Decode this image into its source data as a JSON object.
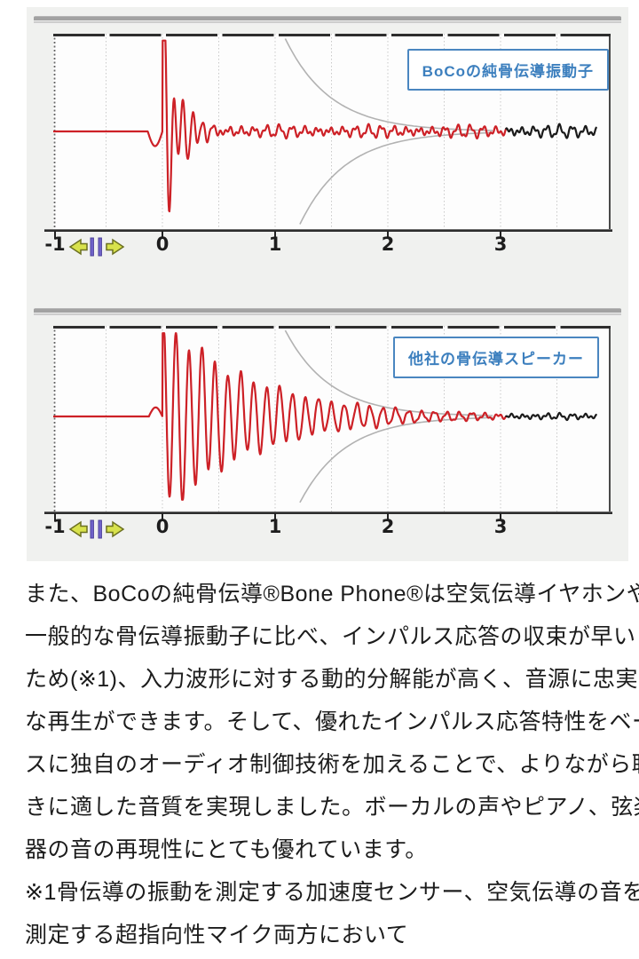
{
  "colors": {
    "section_bg": "#f0f1ef",
    "plot_bg": "#fdfdfd",
    "waveform_red": "#cd2127",
    "waveform_converged_black": "#1b1b1b",
    "envelope_gray": "#b2b2b2",
    "gridline_gray": "#c9c9c9",
    "plot_border_dark": "#2e2e2e",
    "label_text_blue": "#3c7fbe",
    "label_border_blue": "#4a86c0",
    "axis_text": "#1d1d1d",
    "pan_arrow_yellow": "#d8e24c",
    "pan_arrow_outline": "#6b7020",
    "pan_bar_purple": "#7265cc"
  },
  "chart_data": [
    {
      "type": "line",
      "title": "BoCoの純骨伝導振動子",
      "xlabel": "",
      "ylabel": "",
      "x_ticks": [
        -1,
        0,
        1,
        2,
        3
      ],
      "x_tick_labels": [
        "-1",
        "0",
        "1",
        "2",
        "3"
      ],
      "x_range": [
        -0.97,
        3.97
      ],
      "grid": "dotted vertical every 0.5",
      "annotation": "impulse response converges quickly; trace red until converged tail, then black",
      "series_colors": {
        "response": "#cd2127",
        "tail": "#1b1b1b",
        "envelope": "#b2b2b2"
      },
      "synthesis": {
        "pre_start": -0.13,
        "pre_amp": -0.15,
        "burst_start": 0,
        "peak": 1.07,
        "decay_tau": 0.14,
        "carrier_period": 0.085,
        "phase": 0.35,
        "beat_ratio": 0.45,
        "beat_period": 0.142,
        "floor1": 0.038,
        "floor2": 0.022,
        "clip": 0.93,
        "red_until": 3.05,
        "t_end": 3.85
      },
      "envelope": {
        "amp": 1.05,
        "enter_t": 1.05,
        "tau": 0.4,
        "bottom_offset": 0.13,
        "end_t": 2.95
      }
    },
    {
      "type": "line",
      "title": "他社の骨伝導スピーカー",
      "xlabel": "",
      "ylabel": "",
      "x_ticks": [
        -1,
        0,
        1,
        2,
        3
      ],
      "x_tick_labels": [
        "-1",
        "0",
        "1",
        "2",
        "3"
      ],
      "x_range": [
        -0.97,
        3.97
      ],
      "grid": "dotted vertical every 0.5",
      "annotation": "impulse response rings long (slow decay); trace red until converged tail, then black",
      "series_colors": {
        "response": "#cd2127",
        "tail": "#1b1b1b",
        "envelope": "#b2b2b2"
      },
      "synthesis": {
        "pre_start": -0.12,
        "pre_amp": 0.1,
        "burst_start": 0,
        "peak": 1.08,
        "decay_tau": 0.75,
        "carrier_period": 0.115,
        "phase": 1.25,
        "beat_ratio": 0.12,
        "beat_period": 0.34,
        "floor1": 0.024,
        "floor2": 0.014,
        "clip": 0.92,
        "red_until": 3.05,
        "t_end": 3.85
      },
      "envelope": {
        "amp": 1.05,
        "enter_t": 1.05,
        "tau": 0.4,
        "bottom_offset": 0.13,
        "end_t": 2.95
      }
    }
  ],
  "body": {
    "paragraph_lines": [
      "また、BoCoの純骨伝導®Bone Phone®は空気伝導イヤホンや",
      "一般的な骨伝導振動子に比べ、インパルス応答の収束が早い",
      "ため(※1)、入力波形に対する動的分解能が高く、音源に忠実",
      "な再生ができます。そして、優れたインパルス応答特性をベー",
      "スに独自のオーディオ制御技術を加えることで、よりながら聴",
      "きに適した音質を実現しました。ボーカルの声やピアノ、弦楽",
      "器の音の再現性にとても優れています。"
    ],
    "note_lines": [
      "※1骨伝導の振動を測定する加速度センサー、空気伝導の音を",
      "測定する超指向性マイク両方において"
    ]
  }
}
